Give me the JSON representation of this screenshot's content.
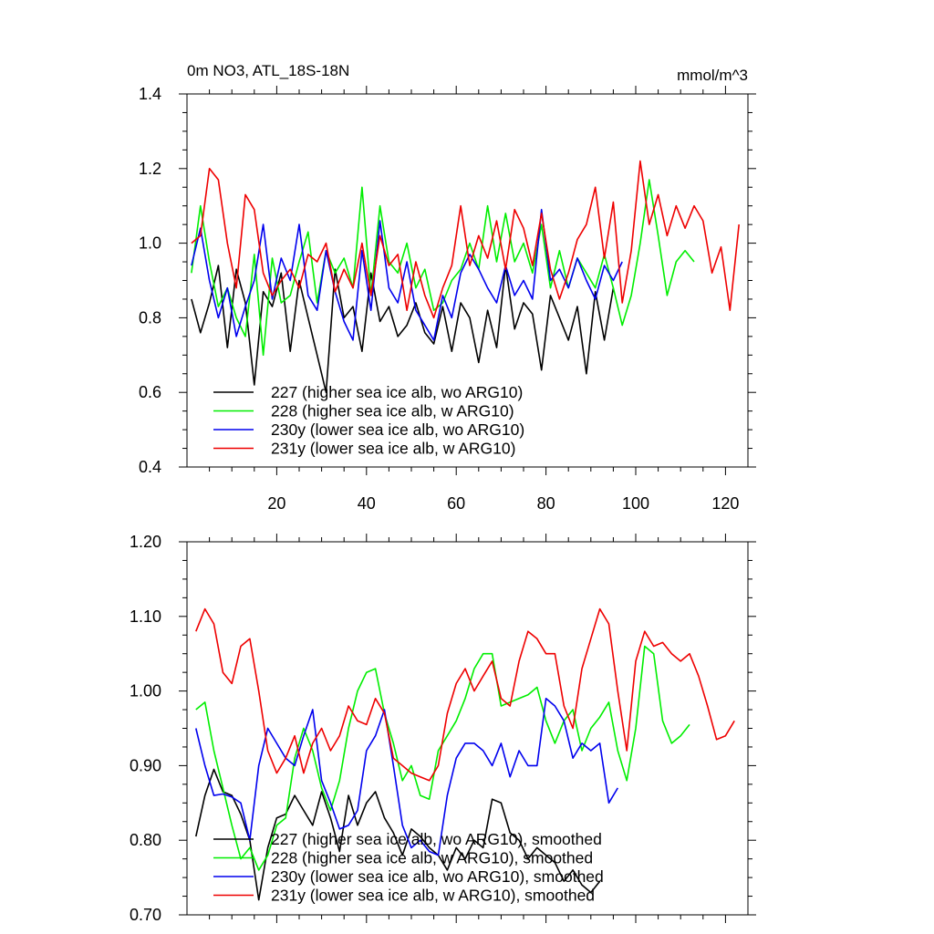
{
  "chart_data": [
    {
      "type": "line",
      "title": "0m NO3, ATL_18S-18N",
      "units": "mmol/m^3",
      "xlabel": "",
      "ylabel": "",
      "xlim": [
        0,
        125
      ],
      "ylim": [
        0.4,
        1.4
      ],
      "xticks": [
        20,
        40,
        60,
        80,
        100,
        120
      ],
      "yticks": [
        "0.4",
        "0.6",
        "0.8",
        "1.0",
        "1.2",
        "1.4"
      ],
      "legend_position": "lower-left",
      "series": [
        {
          "name": "227 (higher sea ice alb, wo ARG10)",
          "color": "#000000",
          "x": [
            1,
            3,
            5,
            7,
            9,
            11,
            13,
            15,
            17,
            19,
            21,
            23,
            25,
            27,
            29,
            31,
            33,
            35,
            37,
            39,
            41,
            43,
            45,
            47,
            49,
            51,
            53,
            55,
            57,
            59,
            61,
            63,
            65,
            67,
            69,
            71,
            73,
            75,
            77,
            79,
            81,
            83,
            85,
            87,
            89,
            91,
            93,
            95
          ],
          "y": [
            0.85,
            0.76,
            0.84,
            0.94,
            0.72,
            0.93,
            0.84,
            0.62,
            0.87,
            0.83,
            0.92,
            0.71,
            0.9,
            0.8,
            0.7,
            0.6,
            0.93,
            0.8,
            0.83,
            0.71,
            0.92,
            0.79,
            0.83,
            0.75,
            0.78,
            0.84,
            0.76,
            0.73,
            0.83,
            0.71,
            0.84,
            0.8,
            0.68,
            0.82,
            0.72,
            0.94,
            0.77,
            0.84,
            0.81,
            0.66,
            0.86,
            0.8,
            0.74,
            0.83,
            0.65,
            0.87,
            0.74,
            0.88
          ]
        },
        {
          "name": "228 (higher sea ice alb, w ARG10)",
          "color": "#00ee00",
          "x": [
            1,
            3,
            5,
            7,
            9,
            11,
            13,
            15,
            17,
            19,
            21,
            23,
            25,
            27,
            29,
            31,
            33,
            35,
            37,
            39,
            41,
            43,
            45,
            47,
            49,
            51,
            53,
            55,
            57,
            59,
            61,
            63,
            65,
            67,
            69,
            71,
            73,
            75,
            77,
            79,
            81,
            83,
            85,
            87,
            89,
            91,
            93,
            95,
            97,
            99,
            101,
            103,
            105,
            107,
            109,
            111,
            113
          ],
          "y": [
            0.92,
            1.1,
            0.95,
            0.83,
            0.88,
            0.8,
            0.75,
            0.97,
            0.7,
            0.96,
            0.84,
            0.86,
            0.95,
            1.03,
            0.84,
            0.98,
            0.92,
            0.96,
            0.88,
            1.15,
            0.86,
            1.1,
            0.95,
            0.92,
            1.0,
            0.88,
            0.93,
            0.82,
            0.84,
            0.9,
            0.93,
            1.0,
            0.93,
            1.1,
            0.95,
            1.08,
            0.95,
            1.0,
            0.92,
            1.05,
            0.88,
            0.98,
            0.88,
            0.96,
            0.92,
            0.88,
            0.97,
            0.88,
            0.78,
            0.86,
            1.0,
            1.17,
            1.02,
            0.86,
            0.95,
            0.98,
            0.95
          ]
        },
        {
          "name": "230y (lower sea ice alb, wo ARG10)",
          "color": "#0000ee",
          "x": [
            1,
            3,
            5,
            7,
            9,
            11,
            13,
            15,
            17,
            19,
            21,
            23,
            25,
            27,
            29,
            31,
            33,
            35,
            37,
            39,
            41,
            43,
            45,
            47,
            49,
            51,
            53,
            55,
            57,
            59,
            61,
            63,
            65,
            67,
            69,
            71,
            73,
            75,
            77,
            79,
            81,
            83,
            85,
            87,
            89,
            91,
            93,
            95,
            97
          ],
          "y": [
            0.94,
            1.04,
            0.9,
            0.8,
            0.88,
            0.75,
            0.83,
            0.9,
            1.05,
            0.85,
            0.96,
            0.9,
            1.05,
            0.86,
            0.82,
            0.98,
            0.87,
            0.79,
            0.74,
            0.98,
            0.82,
            1.06,
            0.88,
            0.84,
            0.95,
            0.82,
            0.78,
            0.74,
            0.86,
            0.8,
            0.92,
            0.97,
            0.93,
            0.88,
            0.84,
            0.94,
            0.86,
            0.9,
            0.85,
            1.09,
            0.9,
            0.93,
            0.88,
            0.96,
            0.9,
            0.85,
            0.94,
            0.9,
            0.95
          ]
        },
        {
          "name": "231y (lower sea ice alb, w ARG10)",
          "color": "#ee0000",
          "x": [
            1,
            3,
            5,
            7,
            9,
            11,
            13,
            15,
            17,
            19,
            21,
            23,
            25,
            27,
            29,
            31,
            33,
            35,
            37,
            39,
            41,
            43,
            45,
            47,
            49,
            51,
            53,
            55,
            57,
            59,
            61,
            63,
            65,
            67,
            69,
            71,
            73,
            75,
            77,
            79,
            81,
            83,
            85,
            87,
            89,
            91,
            93,
            95,
            97,
            99,
            101,
            103,
            105,
            107,
            109,
            111,
            113,
            115,
            117,
            119,
            121,
            123
          ],
          "y": [
            1.0,
            1.02,
            1.2,
            1.17,
            1.0,
            0.88,
            1.13,
            1.09,
            0.92,
            0.86,
            0.9,
            0.93,
            0.88,
            0.97,
            0.95,
            1.0,
            0.87,
            0.93,
            0.88,
            1.0,
            0.86,
            1.02,
            0.94,
            0.97,
            0.82,
            0.95,
            0.86,
            0.8,
            0.88,
            0.94,
            1.1,
            0.94,
            1.02,
            0.96,
            1.06,
            0.93,
            1.09,
            1.04,
            0.94,
            1.08,
            0.93,
            0.85,
            0.92,
            1.01,
            1.05,
            1.15,
            0.96,
            1.11,
            0.84,
            0.98,
            1.22,
            1.05,
            1.13,
            1.02,
            1.1,
            1.04,
            1.1,
            1.06,
            0.92,
            0.99,
            0.82,
            1.05
          ]
        }
      ]
    },
    {
      "type": "line",
      "title": "",
      "xlabel": "",
      "ylabel": "",
      "xlim": [
        0,
        125
      ],
      "ylim": [
        0.7,
        1.2
      ],
      "xticks": [
        20,
        40,
        60,
        80,
        100,
        120
      ],
      "yticks": [
        "0.70",
        "0.80",
        "0.90",
        "1.00",
        "1.10",
        "1.20"
      ],
      "legend_position": "lower-left",
      "series": [
        {
          "name": "227 (higher sea ice alb, wo ARG10), smoothed",
          "color": "#000000",
          "x": [
            2,
            4,
            6,
            8,
            10,
            12,
            14,
            16,
            18,
            20,
            22,
            24,
            26,
            28,
            30,
            32,
            34,
            36,
            38,
            40,
            42,
            44,
            46,
            48,
            50,
            52,
            54,
            56,
            58,
            60,
            62,
            64,
            66,
            68,
            70,
            72,
            74,
            76,
            78,
            80,
            82,
            84,
            86,
            88,
            90,
            92
          ],
          "y": [
            0.805,
            0.86,
            0.895,
            0.865,
            0.86,
            0.835,
            0.8,
            0.72,
            0.79,
            0.83,
            0.835,
            0.86,
            0.84,
            0.82,
            0.865,
            0.83,
            0.785,
            0.86,
            0.82,
            0.85,
            0.865,
            0.83,
            0.81,
            0.78,
            0.815,
            0.805,
            0.79,
            0.78,
            0.76,
            0.79,
            0.775,
            0.8,
            0.79,
            0.855,
            0.85,
            0.81,
            0.8,
            0.775,
            0.79,
            0.78,
            0.77,
            0.745,
            0.76,
            0.74,
            0.73,
            0.745
          ]
        },
        {
          "name": "228 (higher sea ice alb, w ARG10), smoothed",
          "color": "#00ee00",
          "x": [
            2,
            4,
            6,
            8,
            10,
            12,
            14,
            16,
            18,
            20,
            22,
            24,
            26,
            28,
            30,
            32,
            34,
            36,
            38,
            40,
            42,
            44,
            46,
            48,
            50,
            52,
            54,
            56,
            58,
            60,
            62,
            64,
            66,
            68,
            70,
            72,
            74,
            76,
            78,
            80,
            82,
            84,
            86,
            88,
            90,
            92,
            94,
            96,
            98,
            100,
            102,
            104,
            106,
            108,
            110,
            112
          ],
          "y": [
            0.975,
            0.985,
            0.92,
            0.87,
            0.82,
            0.775,
            0.79,
            0.76,
            0.78,
            0.82,
            0.83,
            0.91,
            0.95,
            0.92,
            0.87,
            0.84,
            0.88,
            0.95,
            1.0,
            1.025,
            1.03,
            0.97,
            0.93,
            0.88,
            0.9,
            0.86,
            0.855,
            0.92,
            0.94,
            0.96,
            0.99,
            1.03,
            1.05,
            1.05,
            0.98,
            0.985,
            0.99,
            0.995,
            1.005,
            0.96,
            0.93,
            0.96,
            0.975,
            0.92,
            0.95,
            0.965,
            0.985,
            0.92,
            0.88,
            0.95,
            1.06,
            1.05,
            0.96,
            0.93,
            0.94,
            0.955
          ]
        },
        {
          "name": "230y (lower sea ice alb, wo ARG10), smoothed",
          "color": "#0000ee",
          "x": [
            2,
            4,
            6,
            8,
            10,
            12,
            14,
            16,
            18,
            20,
            22,
            24,
            26,
            28,
            30,
            32,
            34,
            36,
            38,
            40,
            42,
            44,
            46,
            48,
            50,
            52,
            54,
            56,
            58,
            60,
            62,
            64,
            66,
            68,
            70,
            72,
            74,
            76,
            78,
            80,
            82,
            84,
            86,
            88,
            90,
            92,
            94,
            96
          ],
          "y": [
            0.95,
            0.9,
            0.86,
            0.862,
            0.858,
            0.85,
            0.8,
            0.9,
            0.95,
            0.93,
            0.91,
            0.9,
            0.94,
            0.975,
            0.88,
            0.85,
            0.815,
            0.82,
            0.84,
            0.92,
            0.94,
            0.975,
            0.9,
            0.82,
            0.79,
            0.8,
            0.785,
            0.78,
            0.86,
            0.91,
            0.93,
            0.93,
            0.92,
            0.9,
            0.93,
            0.885,
            0.92,
            0.9,
            0.9,
            0.99,
            0.98,
            0.96,
            0.91,
            0.93,
            0.92,
            0.93,
            0.85,
            0.87
          ]
        },
        {
          "name": "231y (lower sea ice alb, w ARG10), smoothed",
          "color": "#ee0000",
          "x": [
            2,
            4,
            6,
            8,
            10,
            12,
            14,
            16,
            18,
            20,
            22,
            24,
            26,
            28,
            30,
            32,
            34,
            36,
            38,
            40,
            42,
            44,
            46,
            48,
            50,
            52,
            54,
            56,
            58,
            60,
            62,
            64,
            66,
            68,
            70,
            72,
            74,
            76,
            78,
            80,
            82,
            84,
            86,
            88,
            90,
            92,
            94,
            96,
            98,
            100,
            102,
            104,
            106,
            108,
            110,
            112,
            114,
            116,
            118,
            120,
            122
          ],
          "y": [
            1.08,
            1.11,
            1.09,
            1.025,
            1.01,
            1.06,
            1.07,
            1.0,
            0.92,
            0.89,
            0.91,
            0.94,
            0.89,
            0.93,
            0.95,
            0.92,
            0.94,
            0.98,
            0.96,
            0.955,
            0.99,
            0.97,
            0.91,
            0.9,
            0.89,
            0.885,
            0.88,
            0.9,
            0.97,
            1.01,
            1.03,
            1.0,
            1.02,
            1.04,
            0.99,
            0.98,
            1.04,
            1.08,
            1.07,
            1.05,
            1.05,
            0.98,
            0.95,
            1.03,
            1.07,
            1.11,
            1.09,
            1.0,
            0.92,
            1.04,
            1.08,
            1.06,
            1.065,
            1.05,
            1.04,
            1.05,
            1.02,
            0.98,
            0.935,
            0.94,
            0.96
          ]
        }
      ]
    }
  ]
}
